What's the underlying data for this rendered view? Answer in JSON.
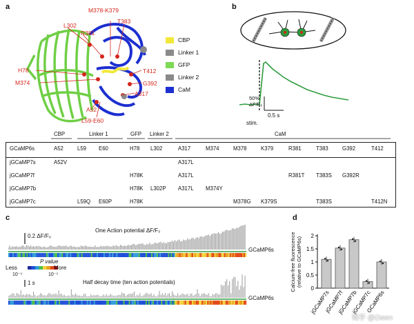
{
  "panels": {
    "a": "a",
    "b": "b",
    "c": "c",
    "d": "d"
  },
  "structure_labels": {
    "m378_k379": "M378-K379",
    "l302": "L302",
    "r381": "R381",
    "t383": "T383",
    "h78": "H78",
    "m374": "M374",
    "t412": "T412",
    "g392": "G392",
    "a317": "A317",
    "a52": "A52",
    "l59_e60": "L59-E60"
  },
  "legend": [
    {
      "label": "CBP",
      "color": "#f2e83a"
    },
    {
      "label": "Linker 1",
      "color": "#8a8a8a"
    },
    {
      "label": "GFP",
      "color": "#7ed957"
    },
    {
      "label": "Linker 2",
      "color": "#8a8a8a"
    },
    {
      "label": "CaM",
      "color": "#1c2fd1"
    }
  ],
  "trace_b": {
    "scale_y": "50%",
    "scale_y_unit": "ΔF/F₀",
    "scale_x": "0.5 s",
    "stim": "stim."
  },
  "table": {
    "group_headers": [
      "CBP",
      "Linker 1",
      "GFP",
      "Linker 2",
      "CaM"
    ],
    "rows": [
      {
        "name": "GCaMP6s",
        "cells": [
          "A52",
          "L59",
          "E60",
          "H78",
          "L302",
          "A317",
          "M374",
          "M378",
          "K379",
          "R381",
          "T383",
          "G392",
          "T412"
        ]
      },
      {
        "name": "jGCaMP7s",
        "cells": [
          "A52V",
          "",
          "",
          "",
          "",
          "A317L",
          "",
          "",
          "",
          "",
          "",
          "",
          ""
        ]
      },
      {
        "name": "jGCaMP7f",
        "cells": [
          "",
          "",
          "",
          "H78K",
          "",
          "A317L",
          "",
          "",
          "",
          "R381T",
          "T383S",
          "G392R",
          ""
        ]
      },
      {
        "name": "jGCaMP7b",
        "cells": [
          "",
          "",
          "",
          "H78K",
          "L302P",
          "A317L",
          "M374Y",
          "",
          "",
          "",
          "",
          "",
          ""
        ]
      },
      {
        "name": "jGCaMP7c",
        "cells": [
          "",
          "L59Q",
          "E60P",
          "H78K",
          "",
          "",
          "",
          "M378G",
          "K379S",
          "",
          "T383S",
          "",
          "T412N"
        ]
      }
    ]
  },
  "panel_c": {
    "scale_top": "0.2",
    "scale_top_unit": "ΔF/F₀",
    "title_top": "One Action potential ΔF/F₀",
    "ref_label_top": "GCaMP6s",
    "pvalue_title": "P value",
    "less": "Less",
    "more": "More",
    "p_low": "10⁻⁵",
    "p_high": "10⁻⁵",
    "scale_bottom": "1 s",
    "title_bottom": "Half decay time (ten action potentials)",
    "ref_label_bottom": "GCaMP6s"
  },
  "chart_data": {
    "type": "bar",
    "ylabel": "Calcium-free fluorescence (relative to GCaMP6s)",
    "categories": [
      "jGCaMP7s",
      "jGCaMP7f",
      "jGCaMP7b",
      "jGCaMP7c",
      "GCaMP6s"
    ],
    "values": [
      1.1,
      1.53,
      1.85,
      0.25,
      1.0
    ],
    "ylim": [
      0,
      2
    ],
    "yticks": [
      "0",
      "0.5",
      "1",
      "1.5",
      "2"
    ]
  },
  "watermark": "知乎 @Owen"
}
